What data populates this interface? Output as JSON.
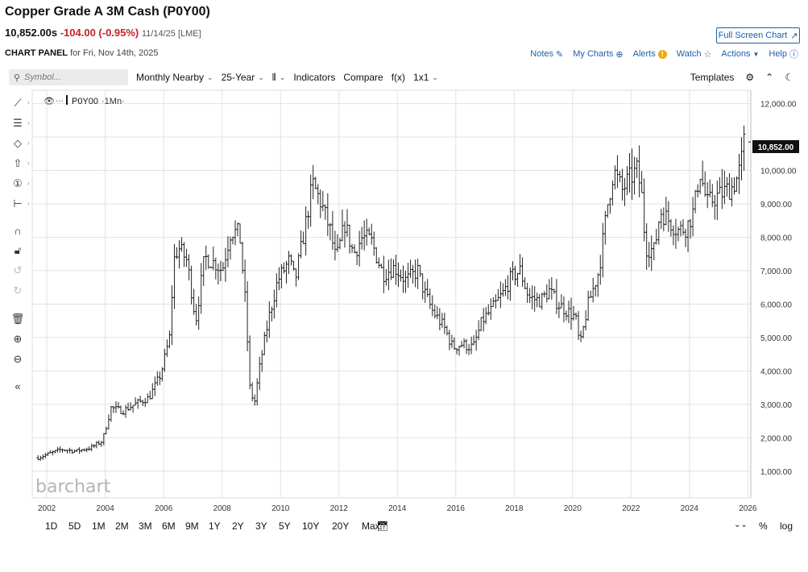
{
  "header": {
    "title": "Copper Grade A 3M Cash (P0Y00)",
    "last": "10,852.00s",
    "change": "-104.00 (-0.95%)",
    "meta": "11/14/25 [LME]",
    "full_screen": "Full Screen Chart",
    "panel_label": "CHART PANEL",
    "panel_date": "for Fri, Nov 14th, 2025"
  },
  "toplinks": {
    "notes": "Notes",
    "my_charts": "My Charts",
    "alerts": "Alerts",
    "alerts_badge": "!",
    "watch": "Watch",
    "actions": "Actions",
    "help": "Help"
  },
  "toolbar": {
    "search_placeholder": "Symbol...",
    "aggregation": "Monthly Nearby",
    "range": "25-Year",
    "indicators": "Indicators",
    "compare": "Compare",
    "fx": "f(x)",
    "layout": "1x1",
    "templates": "Templates"
  },
  "legend": {
    "symbol": "P0Y00",
    "interval": "·1Mn·"
  },
  "price_badge": "10,852.00",
  "watermark": "barchart",
  "bottom": {
    "periods": [
      "1D",
      "5D",
      "1M",
      "2M",
      "3M",
      "6M",
      "9M",
      "1Y",
      "2Y",
      "3Y",
      "5Y",
      "10Y",
      "20Y",
      "Max"
    ],
    "percent": "%",
    "log": "log"
  },
  "chart_data": {
    "type": "ohlc",
    "title": "Copper Grade A 3M Cash (P0Y00)",
    "interval": "monthly",
    "x_ticks": [
      "2002",
      "2004",
      "2006",
      "2008",
      "2010",
      "2012",
      "2014",
      "2016",
      "2018",
      "2020",
      "2022",
      "2024",
      "2026"
    ],
    "y_ticks": [
      "1,000.00",
      "2,000.00",
      "3,000.00",
      "4,000.00",
      "5,000.00",
      "6,000.00",
      "7,000.00",
      "8,000.00",
      "9,000.00",
      "10,000.00",
      "12,000.00"
    ],
    "ylim": [
      200,
      12400
    ],
    "xlim": [
      2001.5,
      2026.1
    ],
    "grid": true,
    "last_value": 10852,
    "anchors": [
      [
        2001.7,
        1400
      ],
      [
        2002.0,
        1500
      ],
      [
        2002.5,
        1650
      ],
      [
        2003.0,
        1600
      ],
      [
        2003.5,
        1700
      ],
      [
        2003.9,
        1900
      ],
      [
        2004.2,
        2900
      ],
      [
        2004.6,
        2800
      ],
      [
        2005.0,
        3000
      ],
      [
        2005.5,
        3200
      ],
      [
        2005.9,
        3900
      ],
      [
        2006.2,
        5000
      ],
      [
        2006.35,
        7300
      ],
      [
        2006.5,
        7700
      ],
      [
        2006.8,
        7300
      ],
      [
        2007.1,
        5500
      ],
      [
        2007.4,
        7400
      ],
      [
        2007.8,
        7200
      ],
      [
        2008.0,
        7000
      ],
      [
        2008.3,
        8200
      ],
      [
        2008.6,
        8100
      ],
      [
        2008.8,
        6000
      ],
      [
        2008.95,
        3500
      ],
      [
        2009.1,
        3000
      ],
      [
        2009.3,
        4200
      ],
      [
        2009.6,
        5600
      ],
      [
        2009.9,
        6700
      ],
      [
        2010.3,
        7300
      ],
      [
        2010.5,
        6700
      ],
      [
        2010.8,
        8100
      ],
      [
        2011.1,
        9600
      ],
      [
        2011.4,
        9000
      ],
      [
        2011.7,
        8200
      ],
      [
        2011.9,
        7300
      ],
      [
        2012.2,
        8400
      ],
      [
        2012.5,
        7500
      ],
      [
        2012.8,
        8000
      ],
      [
        2013.1,
        7900
      ],
      [
        2013.5,
        6900
      ],
      [
        2013.9,
        7100
      ],
      [
        2014.3,
        6700
      ],
      [
        2014.7,
        7000
      ],
      [
        2014.9,
        6400
      ],
      [
        2015.2,
        5800
      ],
      [
        2015.6,
        5300
      ],
      [
        2015.9,
        4700
      ],
      [
        2016.2,
        4800
      ],
      [
        2016.6,
        4700
      ],
      [
        2016.9,
        5500
      ],
      [
        2017.2,
        5800
      ],
      [
        2017.6,
        6300
      ],
      [
        2017.9,
        6800
      ],
      [
        2018.2,
        7000
      ],
      [
        2018.5,
        6200
      ],
      [
        2018.9,
        6100
      ],
      [
        2019.2,
        6400
      ],
      [
        2019.5,
        6000
      ],
      [
        2019.8,
        5800
      ],
      [
        2020.1,
        5600
      ],
      [
        2020.25,
        4700
      ],
      [
        2020.5,
        5900
      ],
      [
        2020.9,
        7000
      ],
      [
        2021.2,
        9000
      ],
      [
        2021.4,
        10000
      ],
      [
        2021.7,
        9400
      ],
      [
        2021.9,
        9700
      ],
      [
        2022.2,
        10000
      ],
      [
        2022.35,
        9400
      ],
      [
        2022.5,
        7700
      ],
      [
        2022.8,
        7600
      ],
      [
        2023.0,
        8800
      ],
      [
        2023.3,
        8500
      ],
      [
        2023.6,
        8200
      ],
      [
        2023.9,
        8300
      ],
      [
        2024.15,
        8800
      ],
      [
        2024.35,
        10000
      ],
      [
        2024.6,
        9000
      ],
      [
        2024.9,
        9200
      ],
      [
        2025.1,
        9300
      ],
      [
        2025.25,
        9400
      ],
      [
        2025.45,
        9500
      ],
      [
        2025.6,
        9700
      ],
      [
        2025.75,
        10100
      ],
      [
        2025.87,
        10852
      ]
    ]
  }
}
